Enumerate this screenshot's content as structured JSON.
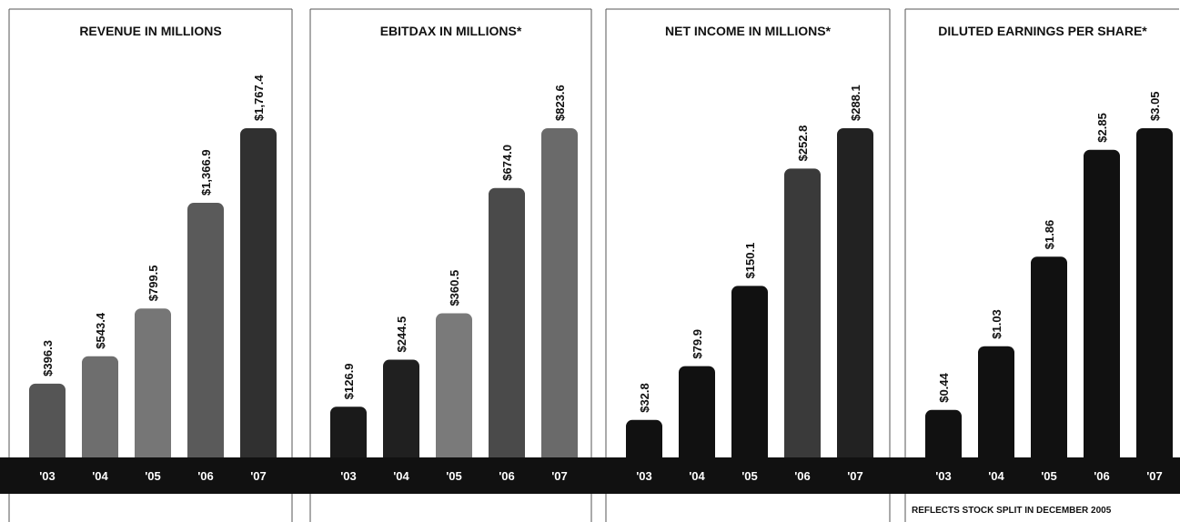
{
  "chart_data": [
    {
      "type": "bar",
      "title": "REVENUE IN MILLIONS",
      "categories": [
        "'03",
        "'04",
        "'05",
        "'06",
        "'07"
      ],
      "values": [
        396.3,
        543.4,
        799.5,
        1366.9,
        1767.4
      ],
      "value_labels": [
        "$396.3",
        "$543.4",
        "$799.5",
        "$1,366.9",
        "$1,767.4"
      ],
      "ylim": [
        0,
        1767.4
      ],
      "bar_colors": [
        "#555555",
        "#6e6e6e",
        "#767676",
        "#5a5a5a",
        "#303030"
      ],
      "footnote": ""
    },
    {
      "type": "bar",
      "title": "EBITDAX IN MILLIONS*",
      "categories": [
        "'03",
        "'04",
        "'05",
        "'06",
        "'07"
      ],
      "values": [
        126.9,
        244.5,
        360.5,
        674.0,
        823.6
      ],
      "value_labels": [
        "$126.9",
        "$244.5",
        "$360.5",
        "$674.0",
        "$823.6"
      ],
      "ylim": [
        0,
        823.6
      ],
      "bar_colors": [
        "#1a1a1a",
        "#202020",
        "#7a7a7a",
        "#4a4a4a",
        "#6a6a6a"
      ],
      "footnote": ""
    },
    {
      "type": "bar",
      "title": "NET INCOME IN MILLIONS*",
      "categories": [
        "'03",
        "'04",
        "'05",
        "'06",
        "'07"
      ],
      "values": [
        32.8,
        79.9,
        150.1,
        252.8,
        288.1
      ],
      "value_labels": [
        "$32.8",
        "$79.9",
        "$150.1",
        "$252.8",
        "$288.1"
      ],
      "ylim": [
        0,
        288.1
      ],
      "bar_colors": [
        "#111111",
        "#111111",
        "#111111",
        "#3a3a3a",
        "#222222"
      ],
      "footnote": ""
    },
    {
      "type": "bar",
      "title": "DILUTED EARNINGS PER SHARE*",
      "categories": [
        "'03",
        "'04",
        "'05",
        "'06",
        "'07"
      ],
      "values": [
        0.44,
        1.03,
        1.86,
        2.85,
        3.05
      ],
      "value_labels": [
        "$0.44",
        "$1.03",
        "$1.86",
        "$2.85",
        "$3.05"
      ],
      "ylim": [
        0,
        3.05
      ],
      "bar_colors": [
        "#111111",
        "#111111",
        "#111111",
        "#111111",
        "#111111"
      ],
      "footnote": "REFLECTS STOCK SPLIT IN DECEMBER 2005"
    }
  ],
  "colors": {
    "band": "#111111",
    "panel_border": "#555555",
    "text": "#111111",
    "band_text": "#ffffff"
  }
}
